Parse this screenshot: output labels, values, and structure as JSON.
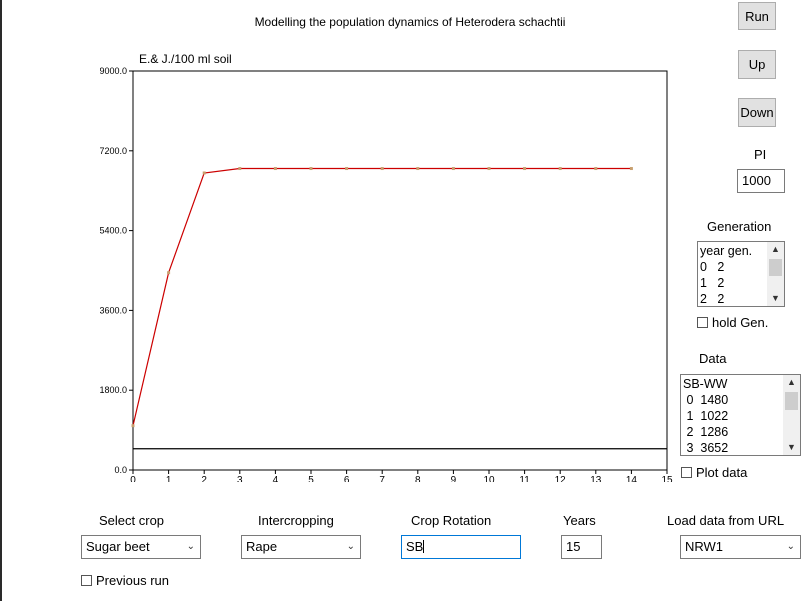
{
  "title": "Modelling the population dynamics of Heterodera schachtii",
  "buttons": {
    "run": "Run",
    "up": "Up",
    "down": "Down"
  },
  "pi": {
    "label": "PI",
    "value": "1000"
  },
  "generation": {
    "label": "Generation",
    "rows": [
      "year gen.",
      "0   2",
      "1   2",
      "2   2"
    ],
    "hold_label": "hold Gen."
  },
  "data_panel": {
    "label": "Data",
    "rows": [
      "SB-WW",
      " 0  1480",
      " 1  1022",
      " 2  1286",
      " 3  3652"
    ],
    "plot_label": "Plot data"
  },
  "controls": {
    "select_crop": {
      "label": "Select crop",
      "value": "Sugar beet"
    },
    "intercropping": {
      "label": "Intercropping",
      "value": "Rape"
    },
    "crop_rotation": {
      "label": "Crop Rotation",
      "value": "SB"
    },
    "years": {
      "label": "Years",
      "value": "15"
    },
    "load_url": {
      "label": "Load data from URL",
      "value": "NRW1"
    },
    "previous_run": "Previous run"
  },
  "icons": {
    "dropdown": "chevron-down-icon",
    "scroll_up": "scroll-up-icon",
    "scroll_down": "scroll-down-icon",
    "checkbox": "checkbox-icon"
  },
  "colors": {
    "series": "#cc0000",
    "marker": "#c8a070",
    "reference_line": "#000000"
  },
  "chart_data": {
    "type": "line",
    "ylabel": "E.& J./100 ml soil",
    "xlim": [
      0,
      15
    ],
    "ylim": [
      0,
      9000
    ],
    "xticks": [
      0,
      1,
      2,
      3,
      4,
      5,
      6,
      7,
      8,
      9,
      10,
      11,
      12,
      13,
      14,
      15
    ],
    "yticks": [
      "0.0",
      "1800.0",
      "3600.0",
      "5400.0",
      "7200.0",
      "9000.0"
    ],
    "ytick_values": [
      0,
      1800,
      3600,
      5400,
      7200,
      9000
    ],
    "series": [
      {
        "x": [
          0,
          1,
          2,
          3,
          4,
          5,
          6,
          7,
          8,
          9,
          10,
          11,
          12,
          13,
          14
        ],
        "values": [
          1000,
          4450,
          6700,
          6800,
          6800,
          6800,
          6800,
          6800,
          6800,
          6800,
          6800,
          6800,
          6800,
          6800,
          6800
        ]
      }
    ],
    "reference_line": 480,
    "grid": false
  }
}
